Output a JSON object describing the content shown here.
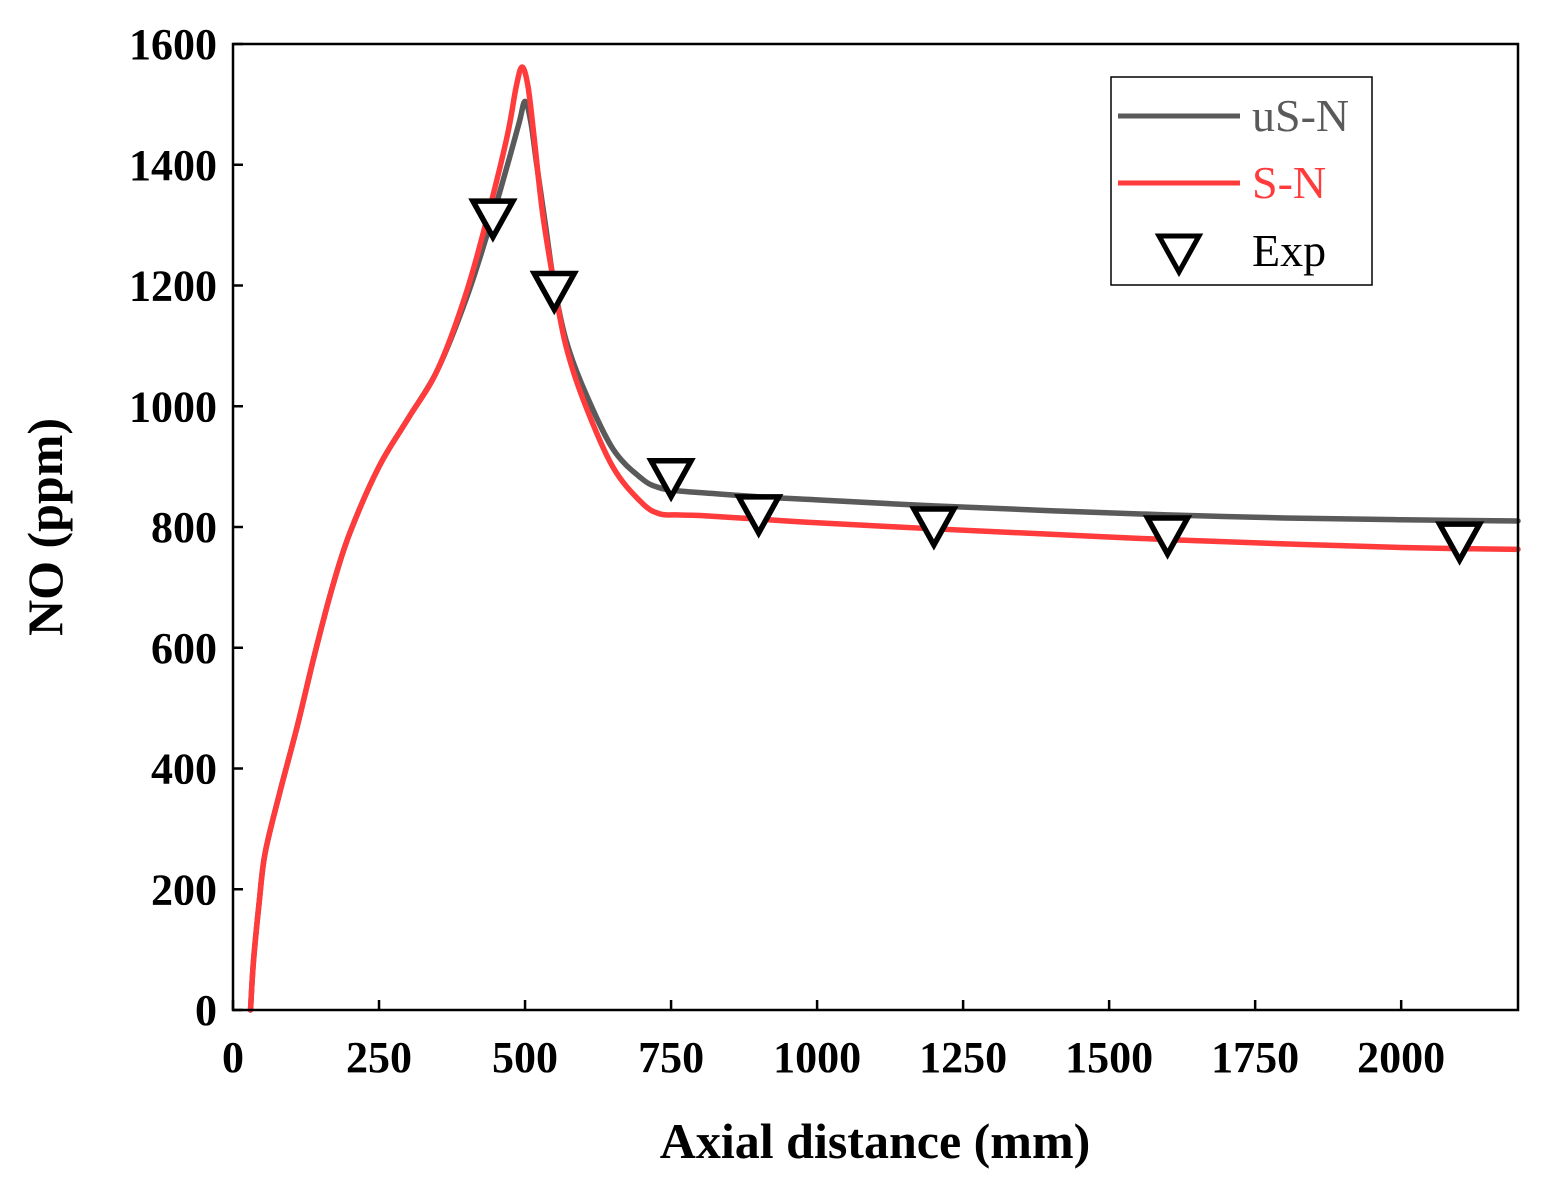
{
  "chart_data": {
    "type": "line",
    "title": "",
    "xlabel": "Axial distance (mm)",
    "ylabel": "NO (ppm)",
    "xlim": [
      0,
      2200
    ],
    "ylim": [
      0,
      1600
    ],
    "xticks": [
      0,
      250,
      500,
      750,
      1000,
      1250,
      1500,
      1750,
      2000
    ],
    "yticks": [
      0,
      200,
      400,
      600,
      800,
      1000,
      1200,
      1400,
      1600
    ],
    "legend_position": "top-right",
    "series": [
      {
        "name": "uS-N",
        "kind": "line",
        "color": "#5a5a5a",
        "x": [
          30,
          35,
          45,
          55,
          80,
          110,
          140,
          170,
          200,
          250,
          300,
          350,
          400,
          440,
          470,
          490,
          500,
          510,
          520,
          535,
          550,
          570,
          600,
          650,
          700,
          730,
          760,
          800,
          900,
          1000,
          1200,
          1400,
          1600,
          1800,
          2000,
          2200
        ],
        "values": [
          0,
          80,
          180,
          260,
          360,
          470,
          590,
          700,
          790,
          900,
          980,
          1060,
          1180,
          1300,
          1400,
          1470,
          1505,
          1470,
          1400,
          1300,
          1200,
          1110,
          1030,
          930,
          880,
          865,
          860,
          857,
          850,
          845,
          835,
          827,
          820,
          815,
          812,
          810
        ]
      },
      {
        "name": "S-N",
        "kind": "line",
        "color": "#ff3b3b",
        "x": [
          30,
          35,
          45,
          55,
          80,
          110,
          140,
          170,
          200,
          250,
          300,
          350,
          400,
          440,
          470,
          485,
          495,
          505,
          515,
          530,
          550,
          570,
          600,
          650,
          700,
          730,
          760,
          800,
          900,
          1000,
          1200,
          1400,
          1600,
          1800,
          2000,
          2200
        ],
        "values": [
          0,
          80,
          180,
          260,
          360,
          470,
          590,
          700,
          790,
          900,
          980,
          1060,
          1190,
          1330,
          1450,
          1530,
          1562,
          1530,
          1450,
          1320,
          1200,
          1100,
          1010,
          900,
          840,
          822,
          820,
          819,
          813,
          807,
          797,
          788,
          779,
          772,
          766,
          763
        ]
      },
      {
        "name": "Exp",
        "kind": "scatter",
        "marker": "triangle-down",
        "color": "#000000",
        "x": [
          445,
          550,
          750,
          900,
          1200,
          1600,
          2100
        ],
        "values": [
          1310,
          1190,
          880,
          820,
          800,
          785,
          775
        ]
      }
    ]
  }
}
